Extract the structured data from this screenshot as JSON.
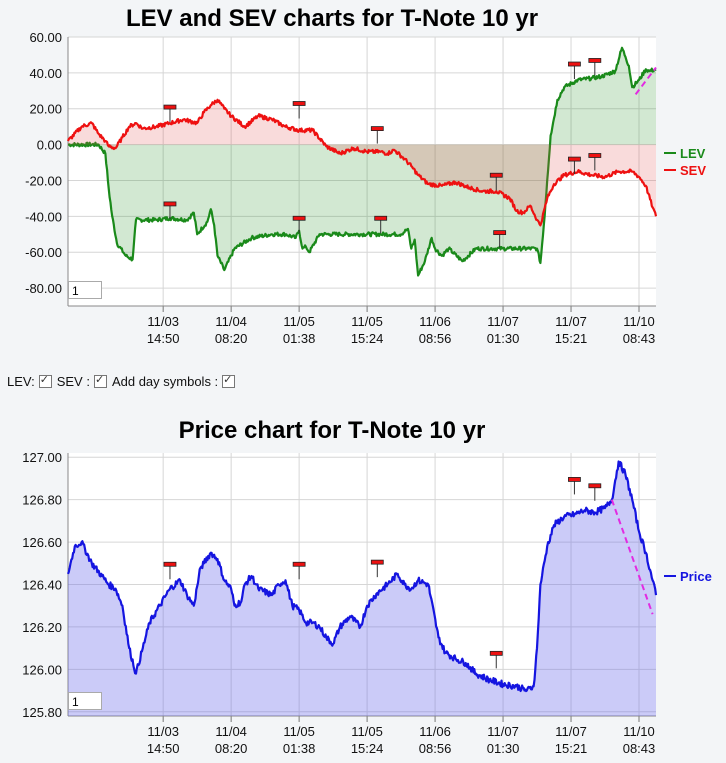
{
  "chart_data": [
    {
      "type": "line",
      "title": "LEV and SEV charts for T-Note 10 yr",
      "ylim": [
        -90,
        60
      ],
      "yticks": [
        "60.00",
        "40.00",
        "20.00",
        "0.00",
        "-20.00",
        "-40.00",
        "-60.00",
        "-80.00"
      ],
      "ytick_values": [
        60,
        40,
        20,
        0,
        -20,
        -40,
        -60,
        -80
      ],
      "xticks": [
        {
          "date": "11/03",
          "time": "14:50"
        },
        {
          "date": "11/04",
          "time": "08:20"
        },
        {
          "date": "11/05",
          "time": "01:38"
        },
        {
          "date": "11/05",
          "time": "15:24"
        },
        {
          "date": "11/06",
          "time": "08:56"
        },
        {
          "date": "11/07",
          "time": "01:30"
        },
        {
          "date": "11/07",
          "time": "15:21"
        },
        {
          "date": "11/10",
          "time": "08:43"
        }
      ],
      "xtick_pos": [
        1.4,
        2.4,
        3.4,
        4.4,
        5.4,
        6.4,
        7.4,
        8.4
      ],
      "x_range": [
        0,
        8.65
      ],
      "series": [
        {
          "name": "LEV",
          "color": "#1a8a1a",
          "x": [
            0,
            0.45,
            0.55,
            0.6,
            0.65,
            0.72,
            0.85,
            0.95,
            1.0,
            1.3,
            1.5,
            1.75,
            1.85,
            1.9,
            2.05,
            2.1,
            2.15,
            2.2,
            2.3,
            2.45,
            2.7,
            3.0,
            3.2,
            3.35,
            3.4,
            3.45,
            3.5,
            3.55,
            3.7,
            3.85,
            4.0,
            4.3,
            4.6,
            4.9,
            5.0,
            5.05,
            5.1,
            5.15,
            5.25,
            5.35,
            5.4,
            5.5,
            5.6,
            5.8,
            6.0,
            6.4,
            6.9,
            6.95,
            7.0,
            7.05,
            7.1,
            7.2,
            7.3,
            7.5,
            7.7,
            7.85,
            8.05,
            8.15,
            8.2,
            8.25,
            8.3,
            8.4,
            8.5,
            8.55,
            8.65
          ],
          "y": [
            0,
            0,
            -5,
            -25,
            -40,
            -55,
            -62,
            -64,
            -42,
            -42,
            -41,
            -42,
            -38,
            -50,
            -43,
            -36,
            -45,
            -62,
            -70,
            -58,
            -52,
            -50,
            -50,
            -52,
            -48,
            -58,
            -57,
            -60,
            -50,
            -50,
            -50,
            -50,
            -50,
            -50,
            -47,
            -58,
            -53,
            -73,
            -65,
            -52,
            -58,
            -62,
            -58,
            -65,
            -58,
            -58,
            -58,
            -66,
            -45,
            -20,
            5,
            25,
            32,
            36,
            37,
            38,
            41,
            54,
            49,
            44,
            32,
            36,
            42,
            41,
            42
          ]
        },
        {
          "name": "SEV",
          "color": "#ee1111",
          "x": [
            0,
            0.2,
            0.35,
            0.45,
            0.55,
            0.6,
            0.7,
            0.8,
            0.9,
            1.0,
            1.1,
            1.3,
            1.5,
            1.7,
            1.9,
            2.0,
            2.1,
            2.2,
            2.3,
            2.4,
            2.6,
            2.8,
            3.0,
            3.2,
            3.4,
            3.6,
            3.8,
            4.0,
            4.2,
            4.4,
            4.6,
            4.7,
            4.8,
            4.95,
            5.05,
            5.15,
            5.3,
            5.5,
            5.7,
            5.9,
            6.1,
            6.3,
            6.5,
            6.6,
            6.7,
            6.8,
            6.9,
            6.95,
            7.05,
            7.15,
            7.3,
            7.5,
            7.7,
            7.9,
            8.1,
            8.3,
            8.4,
            8.5,
            8.6,
            8.65
          ],
          "y": [
            2,
            10,
            12,
            6,
            2,
            -1,
            -2,
            4,
            10,
            12,
            9,
            10,
            12,
            14,
            12,
            18,
            22,
            25,
            20,
            16,
            10,
            16,
            14,
            10,
            8,
            8,
            -1,
            -5,
            -2,
            -4,
            -4,
            -5,
            -3,
            -8,
            -12,
            -17,
            -22,
            -23,
            -21,
            -24,
            -26,
            -26,
            -30,
            -37,
            -38,
            -34,
            -42,
            -45,
            -30,
            -22,
            -17,
            -15,
            -17,
            -18,
            -15,
            -15,
            -18,
            -23,
            -35,
            -40
          ]
        }
      ],
      "markers": [
        {
          "series": "LEV",
          "x": 1.5,
          "y": -42
        },
        {
          "series": "LEV",
          "x": 3.4,
          "y": -50
        },
        {
          "series": "LEV",
          "x": 4.6,
          "y": -50
        },
        {
          "series": "LEV",
          "x": 6.35,
          "y": -58
        },
        {
          "series": "LEV",
          "x": 7.45,
          "y": 36
        },
        {
          "series": "LEV",
          "x": 7.75,
          "y": 38
        },
        {
          "series": "SEV",
          "x": 1.5,
          "y": 12
        },
        {
          "series": "SEV",
          "x": 3.4,
          "y": 14
        },
        {
          "series": "SEV",
          "x": 4.55,
          "y": 0
        },
        {
          "series": "SEV",
          "x": 6.3,
          "y": -26
        },
        {
          "series": "SEV",
          "x": 7.45,
          "y": -17
        },
        {
          "series": "SEV",
          "x": 7.75,
          "y": -15
        }
      ],
      "trendline": {
        "color": "#e22be2",
        "x": [
          8.35,
          8.65
        ],
        "y": [
          28,
          43
        ]
      },
      "zoom_value": "1"
    },
    {
      "type": "area",
      "title": "Price chart for T-Note 10 yr",
      "ylim": [
        125.78,
        127.02
      ],
      "yticks": [
        "127.00",
        "126.80",
        "126.60",
        "126.40",
        "126.20",
        "126.00",
        "125.80"
      ],
      "ytick_values": [
        127.0,
        126.8,
        126.6,
        126.4,
        126.2,
        126.0,
        125.8
      ],
      "xticks": [
        {
          "date": "11/03",
          "time": "14:50"
        },
        {
          "date": "11/04",
          "time": "08:20"
        },
        {
          "date": "11/05",
          "time": "01:38"
        },
        {
          "date": "11/05",
          "time": "15:24"
        },
        {
          "date": "11/06",
          "time": "08:56"
        },
        {
          "date": "11/07",
          "time": "01:30"
        },
        {
          "date": "11/07",
          "time": "15:21"
        },
        {
          "date": "11/10",
          "time": "08:43"
        }
      ],
      "xtick_pos": [
        1.4,
        2.4,
        3.4,
        4.4,
        5.4,
        6.4,
        7.4,
        8.4
      ],
      "x_range": [
        0,
        8.65
      ],
      "series": [
        {
          "name": "Price",
          "color": "#1515e0",
          "x": [
            0,
            0.1,
            0.2,
            0.35,
            0.5,
            0.6,
            0.7,
            0.8,
            0.9,
            1.0,
            1.1,
            1.2,
            1.35,
            1.5,
            1.65,
            1.75,
            1.85,
            1.95,
            2.0,
            2.1,
            2.2,
            2.3,
            2.4,
            2.45,
            2.55,
            2.6,
            2.7,
            2.8,
            3.0,
            3.1,
            3.2,
            3.3,
            3.4,
            3.5,
            3.6,
            3.7,
            3.8,
            3.9,
            4.0,
            4.15,
            4.3,
            4.4,
            4.55,
            4.7,
            4.85,
            4.95,
            5.05,
            5.15,
            5.3,
            5.45,
            5.55,
            5.7,
            5.85,
            6.0,
            6.2,
            6.4,
            6.6,
            6.75,
            6.85,
            6.9,
            6.95,
            7.05,
            7.15,
            7.3,
            7.45,
            7.6,
            7.75,
            7.9,
            8.0,
            8.1,
            8.2,
            8.3,
            8.4,
            8.5,
            8.6,
            8.65
          ],
          "y": [
            126.45,
            126.58,
            126.6,
            126.5,
            126.44,
            126.4,
            126.38,
            126.3,
            126.1,
            125.98,
            126.1,
            126.22,
            126.3,
            126.38,
            126.42,
            126.35,
            126.3,
            126.48,
            126.5,
            126.55,
            126.52,
            126.42,
            126.38,
            126.3,
            126.32,
            126.4,
            126.44,
            126.38,
            126.35,
            126.4,
            126.42,
            126.3,
            126.28,
            126.22,
            126.22,
            126.2,
            126.15,
            126.12,
            126.2,
            126.25,
            126.2,
            126.3,
            126.36,
            126.4,
            126.45,
            126.4,
            126.38,
            126.42,
            126.4,
            126.15,
            126.08,
            126.05,
            126.03,
            125.98,
            125.95,
            125.93,
            125.92,
            125.9,
            125.92,
            126.1,
            126.4,
            126.58,
            126.68,
            126.72,
            126.73,
            126.75,
            126.74,
            126.76,
            126.8,
            126.98,
            126.92,
            126.8,
            126.65,
            126.55,
            126.42,
            126.35
          ]
        }
      ],
      "markers": [
        {
          "series": "Price",
          "x": 1.5,
          "y": 126.42
        },
        {
          "series": "Price",
          "x": 3.4,
          "y": 126.42
        },
        {
          "series": "Price",
          "x": 4.55,
          "y": 126.43
        },
        {
          "series": "Price",
          "x": 6.3,
          "y": 126.0
        },
        {
          "series": "Price",
          "x": 7.45,
          "y": 126.82
        },
        {
          "series": "Price",
          "x": 7.75,
          "y": 126.79
        }
      ],
      "trendline": {
        "color": "#e22be2",
        "x": [
          8.0,
          8.6
        ],
        "y": [
          126.8,
          126.26
        ]
      },
      "zoom_value": "1"
    }
  ],
  "controls": {
    "lev_label": "LEV:",
    "sev_label": "SEV :",
    "day_symbols_label": "Add day symbols :"
  }
}
